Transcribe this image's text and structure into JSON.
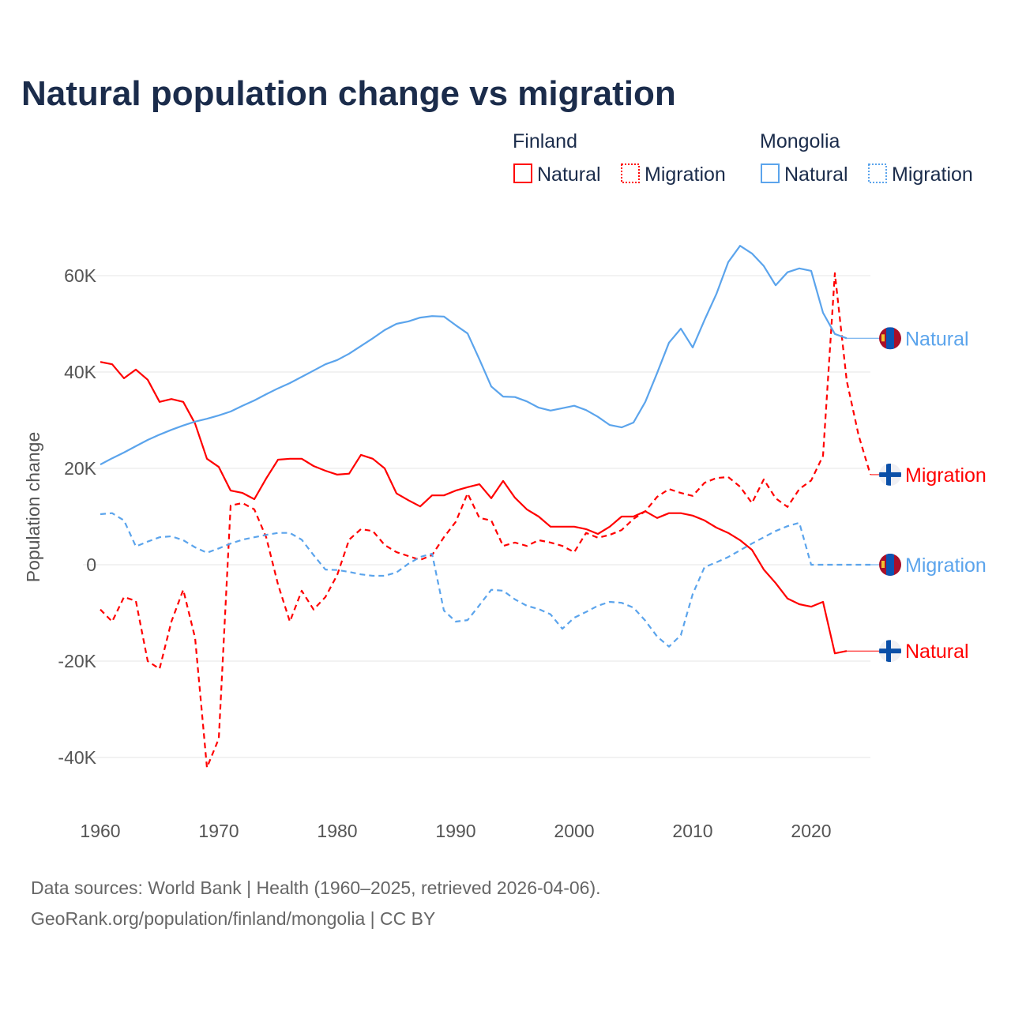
{
  "chart_data": {
    "type": "line",
    "title": "Natural population change vs migration",
    "ylabel": "Population change",
    "xlabel": "",
    "xlim": [
      1960,
      2025
    ],
    "ylim": [
      -45000,
      68000
    ],
    "x_ticks": [
      1960,
      1970,
      1980,
      1990,
      2000,
      2010,
      2020
    ],
    "x_tick_labels": [
      "1960",
      "1970",
      "1980",
      "1990",
      "2000",
      "2010",
      "2020"
    ],
    "y_ticks": [
      -40000,
      -20000,
      0,
      20000,
      40000,
      60000
    ],
    "y_tick_labels": [
      "-40K",
      "-20K",
      "0",
      "20K",
      "40K",
      "60K"
    ],
    "grid": true,
    "legend_placement": "top-right",
    "legend": {
      "groups": [
        {
          "name": "Finland",
          "items": [
            {
              "label": "Natural",
              "style": "solid"
            },
            {
              "label": "Migration",
              "style": "dotted"
            }
          ]
        },
        {
          "name": "Mongolia",
          "items": [
            {
              "label": "Natural",
              "style": "solid"
            },
            {
              "label": "Migration",
              "style": "dotted"
            }
          ]
        }
      ]
    },
    "start_year": 1960,
    "series": [
      {
        "name": "Finland Natural",
        "country": "Finland",
        "end_label": "Natural",
        "color": "#ff0000",
        "dash": false,
        "values": [
          42100,
          41600,
          38700,
          40500,
          38400,
          33800,
          34400,
          33800,
          29300,
          22000,
          20300,
          15400,
          14900,
          13600,
          17900,
          21800,
          22000,
          22000,
          20500,
          19500,
          18700,
          18900,
          22800,
          22000,
          20000,
          14800,
          13400,
          12100,
          14400,
          14400,
          15400,
          16100,
          16700,
          13800,
          17400,
          13900,
          11500,
          10000,
          7900,
          7900,
          7900,
          7400,
          6400,
          7900,
          10000,
          10000,
          11100,
          9700,
          10700,
          10700,
          10200,
          9200,
          7700,
          6600,
          5100,
          3100,
          -1000,
          -3800,
          -7000,
          -8200,
          -8700,
          -7700,
          -18400,
          -17900
        ]
      },
      {
        "name": "Finland Migration",
        "country": "Finland",
        "end_label": "Migration",
        "color": "#ff0000",
        "dash": true,
        "values": [
          -9300,
          -11800,
          -6700,
          -7500,
          -20000,
          -21600,
          -11800,
          -5200,
          -15200,
          -42100,
          -36100,
          12300,
          12800,
          11500,
          5700,
          -4100,
          -11800,
          -5400,
          -9300,
          -6700,
          -2100,
          5200,
          7400,
          7000,
          4100,
          2600,
          1800,
          1000,
          2000,
          5700,
          8900,
          14800,
          9700,
          9200,
          3900,
          4600,
          3900,
          5100,
          4600,
          3900,
          2600,
          6600,
          5600,
          6200,
          7200,
          9500,
          11100,
          14100,
          15700,
          14900,
          14300,
          17000,
          18000,
          18200,
          16200,
          12800,
          17700,
          13800,
          12000,
          15700,
          17500,
          22600,
          60500,
          38200,
          26900,
          18700
        ]
      },
      {
        "name": "Mongolia Natural",
        "country": "Mongolia",
        "end_label": "Natural",
        "color": "#5ba4ec",
        "dash": false,
        "values": [
          20800,
          22100,
          23300,
          24600,
          25900,
          27000,
          28000,
          28900,
          29700,
          30300,
          31000,
          31800,
          33000,
          34100,
          35400,
          36600,
          37700,
          39000,
          40300,
          41600,
          42500,
          43800,
          45400,
          47000,
          48700,
          50000,
          50500,
          51300,
          51600,
          51500,
          49700,
          48000,
          42600,
          37000,
          34900,
          34800,
          33900,
          32600,
          32000,
          32500,
          33000,
          32100,
          30700,
          29000,
          28500,
          29500,
          33800,
          39800,
          46100,
          49000,
          45100,
          50800,
          56200,
          62800,
          66200,
          64600,
          62000,
          58000,
          60700,
          61500,
          61000,
          52300,
          47900,
          47000
        ]
      },
      {
        "name": "Mongolia Migration",
        "country": "Mongolia",
        "end_label": "Migration",
        "color": "#5ba4ec",
        "dash": true,
        "values": [
          10500,
          10700,
          9200,
          3800,
          4800,
          5700,
          5900,
          5100,
          3600,
          2500,
          3400,
          4400,
          5200,
          5700,
          6200,
          6600,
          6600,
          5200,
          2000,
          -1000,
          -1100,
          -1500,
          -2000,
          -2300,
          -2300,
          -1600,
          200,
          1600,
          2300,
          -9500,
          -11800,
          -11500,
          -8400,
          -5200,
          -5400,
          -7200,
          -8500,
          -9200,
          -10300,
          -13300,
          -11000,
          -9800,
          -8500,
          -7700,
          -7900,
          -8900,
          -11600,
          -14900,
          -17000,
          -14600,
          -6100,
          -500,
          500,
          1600,
          3000,
          4400,
          5700,
          7000,
          8000,
          8700,
          0,
          0,
          0,
          0,
          0,
          0
        ]
      }
    ]
  },
  "colors": {
    "finland": "#ff0000",
    "mongolia": "#5ba4ec",
    "title": "#1b2c4b"
  },
  "footer": {
    "line1": "Data sources: World Bank | Health (1960–2025, retrieved 2026-04-06).",
    "line2": "GeoRank.org/population/finland/mongolia | CC BY"
  }
}
